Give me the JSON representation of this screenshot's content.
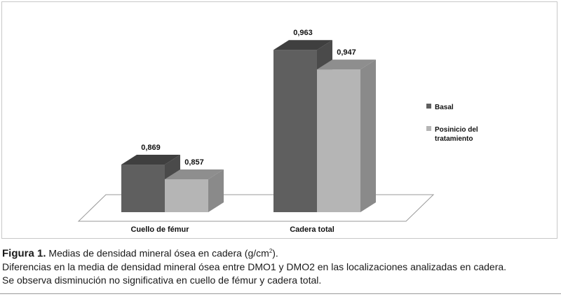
{
  "chart_data": {
    "type": "bar",
    "categories": [
      "Cuello de fémur",
      "Cadera total"
    ],
    "series": [
      {
        "name": "Basal",
        "values": [
          0.869,
          0.963
        ],
        "labels": [
          "0,869",
          "0,963"
        ]
      },
      {
        "name": "Posinicio del tratamiento",
        "values": [
          0.857,
          0.947
        ],
        "labels": [
          "0,857",
          "0,947"
        ]
      }
    ],
    "legend_lines": {
      "basal": [
        "Basal"
      ],
      "posinicio": [
        "Posinicio del",
        "tratamiento"
      ]
    },
    "ylim": [
      0.83,
      0.97
    ],
    "grid": false,
    "legend_position": "right",
    "style": "3d",
    "colors": {
      "basal": "#5f5f5f",
      "posinicio": "#b5b5b5"
    }
  },
  "caption": {
    "label": "Figura 1.",
    "title": "Medias de densidad mineral ósea en cadera (g/cm",
    "title_sup": "2",
    "title_end": ").",
    "line2": "Diferencias en la media de densidad mineral ósea entre DMO1 y DMO2 en las localizaciones analizadas en cadera.",
    "line3": "Se observa disminución no significativa en cuello de fémur y cadera total."
  }
}
